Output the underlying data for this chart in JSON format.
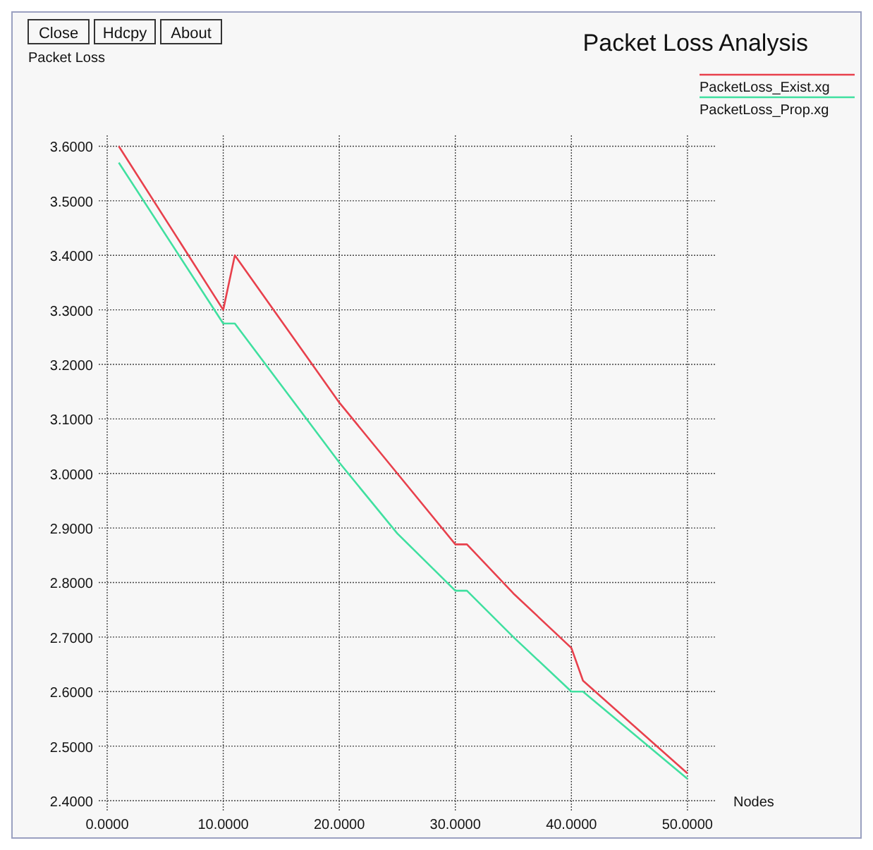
{
  "chart_data": {
    "type": "line",
    "title": "Packet Loss Analysis",
    "ylabel": "Packet Loss",
    "xlabel": "Nodes",
    "annotations": [
      "Close",
      "Hdcpy",
      "About"
    ],
    "series": [
      {
        "name": "PacketLoss_Exist.xg",
        "color": "#e8404c",
        "x": [
          1,
          10,
          11,
          20,
          25,
          30,
          31,
          35,
          40,
          41,
          50
        ],
        "values": [
          3.6,
          3.3,
          3.4,
          3.13,
          3.0,
          2.87,
          2.87,
          2.78,
          2.68,
          2.62,
          2.45
        ]
      },
      {
        "name": "PacketLoss_Prop.xg",
        "color": "#40e0a0",
        "x": [
          1,
          10,
          11,
          20,
          25,
          30,
          31,
          35,
          40,
          41,
          50
        ],
        "values": [
          3.57,
          3.275,
          3.275,
          3.02,
          2.89,
          2.785,
          2.785,
          2.7,
          2.6,
          2.6,
          2.44
        ]
      }
    ],
    "xlim": [
      0,
      52.5
    ],
    "ylim": [
      2.4,
      3.62
    ],
    "xticks": [
      {
        "value": 0,
        "label": "0.0000"
      },
      {
        "value": 10,
        "label": "10.0000"
      },
      {
        "value": 20,
        "label": "20.0000"
      },
      {
        "value": 30,
        "label": "30.0000"
      },
      {
        "value": 40,
        "label": "40.0000"
      },
      {
        "value": 50,
        "label": "50.0000"
      }
    ],
    "yticks": [
      {
        "value": 2.4,
        "label": "2.4000"
      },
      {
        "value": 2.5,
        "label": "2.5000"
      },
      {
        "value": 2.6,
        "label": "2.6000"
      },
      {
        "value": 2.7,
        "label": "2.7000"
      },
      {
        "value": 2.8,
        "label": "2.8000"
      },
      {
        "value": 2.9,
        "label": "2.9000"
      },
      {
        "value": 3.0,
        "label": "3.0000"
      },
      {
        "value": 3.1,
        "label": "3.1000"
      },
      {
        "value": 3.2,
        "label": "3.2000"
      },
      {
        "value": 3.3,
        "label": "3.3000"
      },
      {
        "value": 3.4,
        "label": "3.4000"
      },
      {
        "value": 3.5,
        "label": "3.5000"
      },
      {
        "value": 3.6,
        "label": "3.6000"
      }
    ],
    "grid": true,
    "legend": "top right",
    "line_style": "solid",
    "marker": "none"
  }
}
